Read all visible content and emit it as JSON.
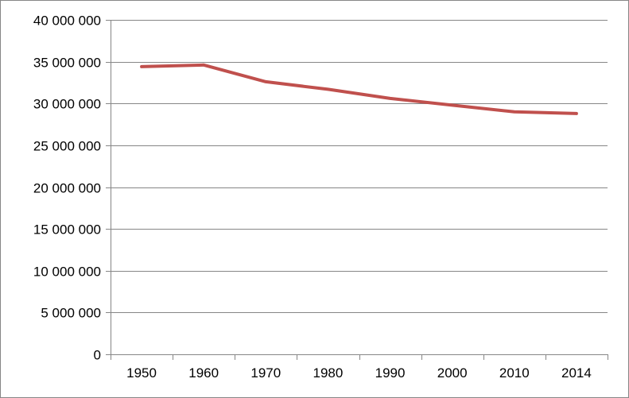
{
  "chart_data": {
    "type": "line",
    "title": "",
    "xlabel": "",
    "ylabel": "",
    "categories": [
      "1950",
      "1960",
      "1970",
      "1980",
      "1990",
      "2000",
      "2010",
      "2014"
    ],
    "series": [
      {
        "values": [
          34400000,
          34600000,
          32600000,
          31700000,
          30600000,
          29800000,
          29000000,
          28800000
        ],
        "color": "#C0504D"
      }
    ],
    "ylim": [
      0,
      40000000
    ],
    "yticks": [
      0,
      5000000,
      10000000,
      15000000,
      20000000,
      25000000,
      30000000,
      35000000,
      40000000
    ],
    "ytick_labels": [
      "0",
      "5 000 000",
      "10 000 000",
      "15 000 000",
      "20 000 000",
      "25 000 000",
      "30 000 000",
      "35 000 000",
      "40 000 000"
    ],
    "grid": true,
    "legend": "none",
    "colors": {
      "line": "#C0504D",
      "grid": "#868686",
      "axis": "#868686"
    }
  }
}
